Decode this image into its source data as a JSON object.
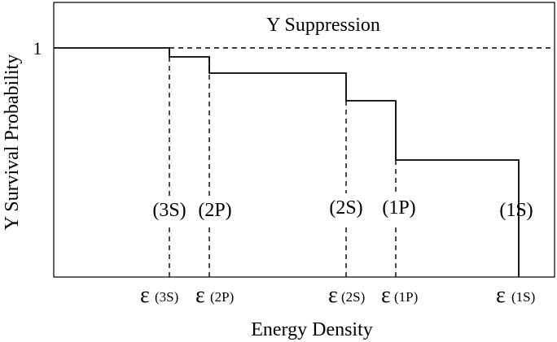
{
  "diagram": {
    "title": "Y Suppression",
    "y_axis_label": "Y Survival Probability",
    "y_tick_label": "1",
    "x_axis_label": "Energy Density",
    "states": [
      {
        "label": "(3S)",
        "threshold_symbol": "ε",
        "threshold_sub": "(3S)"
      },
      {
        "label": "(2P)",
        "threshold_symbol": "ε",
        "threshold_sub": "(2P)"
      },
      {
        "label": "(2S)",
        "threshold_symbol": "ε",
        "threshold_sub": "(2S)"
      },
      {
        "label": "(1P)",
        "threshold_symbol": "ε",
        "threshold_sub": "(1P)"
      },
      {
        "label": "(1S)",
        "threshold_symbol": "ε",
        "threshold_sub": "(1S)"
      }
    ],
    "colors": {
      "line": "#000000",
      "background": "#ffffff"
    }
  }
}
